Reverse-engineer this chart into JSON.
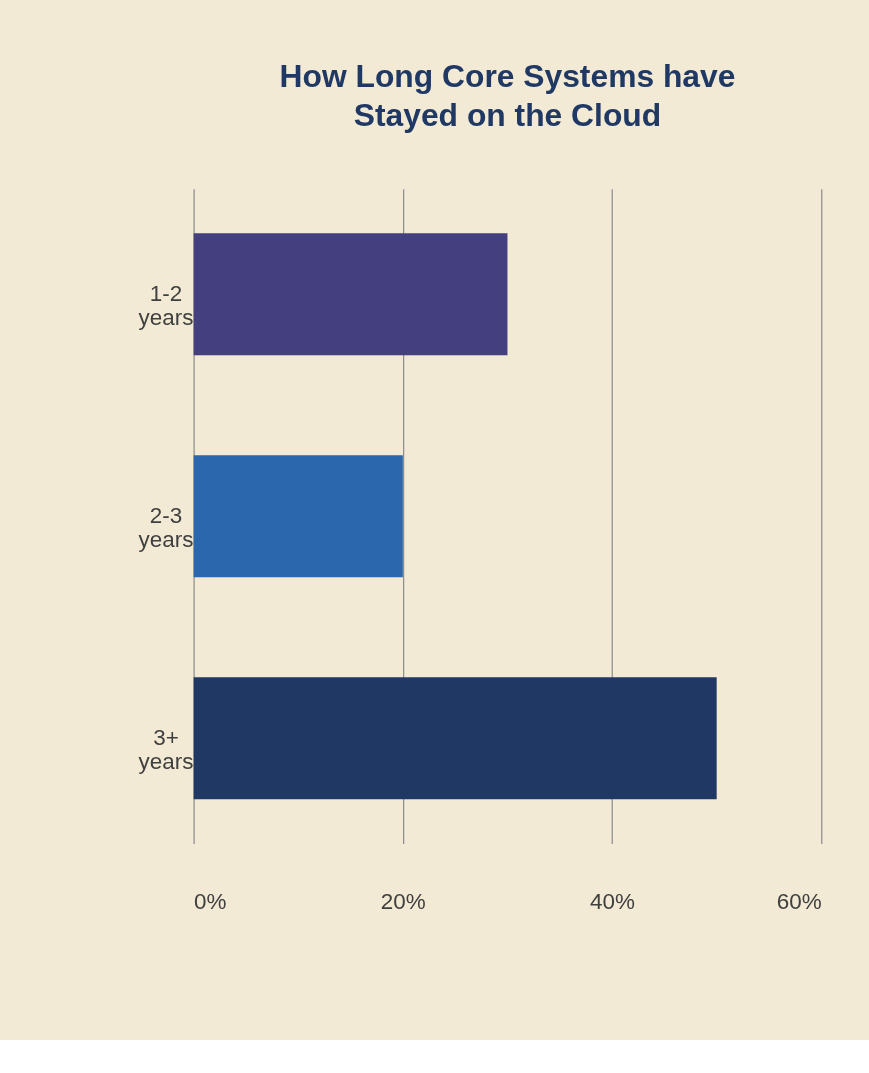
{
  "chart_data": {
    "type": "bar",
    "orientation": "horizontal",
    "title": "How Long Core Systems have Stayed on the Cloud",
    "categories": [
      "1-2 years",
      "2-3 years",
      "3+ years"
    ],
    "values": [
      30,
      20,
      50
    ],
    "colors": [
      "#443f7e",
      "#2a67ad",
      "#1f3864"
    ],
    "xlim": [
      0,
      60
    ],
    "xticks": [
      {
        "value": 0,
        "label": "0%"
      },
      {
        "value": 20,
        "label": "20%"
      },
      {
        "value": 40,
        "label": "40%"
      },
      {
        "value": 60,
        "label": "60%"
      }
    ],
    "grid": "x",
    "legend": false
  }
}
